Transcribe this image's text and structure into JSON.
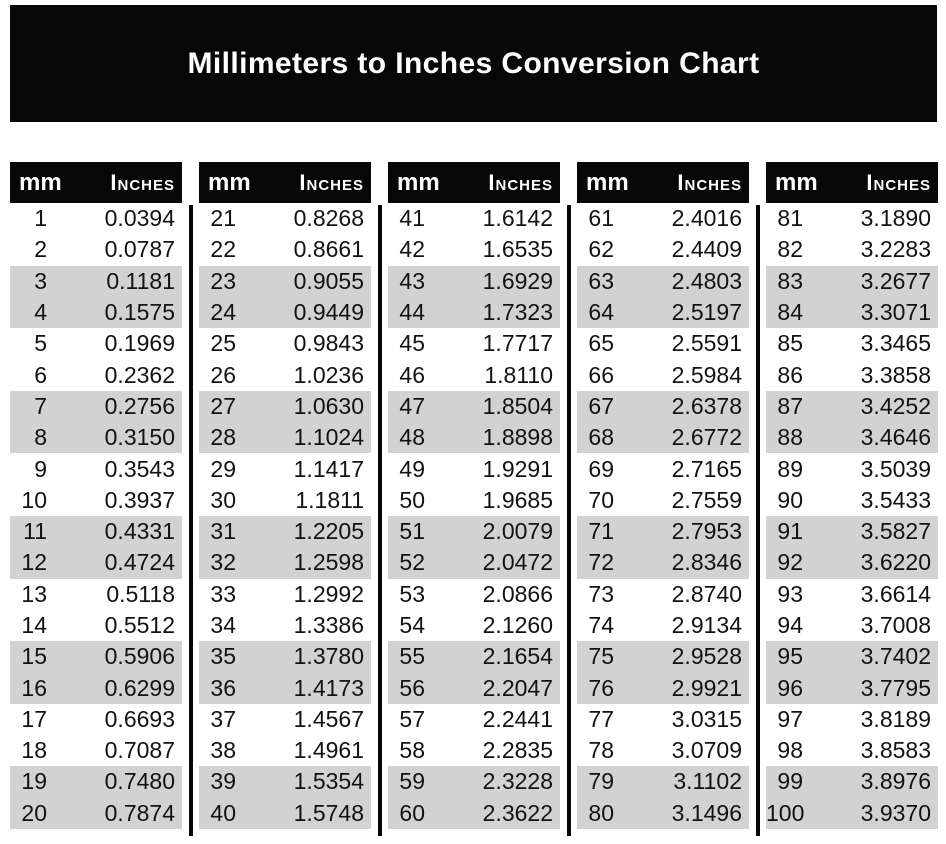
{
  "title": "Millimeters to Inches Conversion Chart",
  "columns": {
    "mm": "mm",
    "inches": "Inches"
  },
  "colors": {
    "banner_bg": "#070707",
    "header_bg": "#070707",
    "stripe": "#d2d2d2",
    "title_text": "#ffffff"
  },
  "tables": [
    {
      "rows": [
        [
          "1",
          "0.0394"
        ],
        [
          "2",
          "0.0787"
        ],
        [
          "3",
          "0.1181"
        ],
        [
          "4",
          "0.1575"
        ],
        [
          "5",
          "0.1969"
        ],
        [
          "6",
          "0.2362"
        ],
        [
          "7",
          "0.2756"
        ],
        [
          "8",
          "0.3150"
        ],
        [
          "9",
          "0.3543"
        ],
        [
          "10",
          "0.3937"
        ],
        [
          "11",
          "0.4331"
        ],
        [
          "12",
          "0.4724"
        ],
        [
          "13",
          "0.5118"
        ],
        [
          "14",
          "0.5512"
        ],
        [
          "15",
          "0.5906"
        ],
        [
          "16",
          "0.6299"
        ],
        [
          "17",
          "0.6693"
        ],
        [
          "18",
          "0.7087"
        ],
        [
          "19",
          "0.7480"
        ],
        [
          "20",
          "0.7874"
        ]
      ]
    },
    {
      "rows": [
        [
          "21",
          "0.8268"
        ],
        [
          "22",
          "0.8661"
        ],
        [
          "23",
          "0.9055"
        ],
        [
          "24",
          "0.9449"
        ],
        [
          "25",
          "0.9843"
        ],
        [
          "26",
          "1.0236"
        ],
        [
          "27",
          "1.0630"
        ],
        [
          "28",
          "1.1024"
        ],
        [
          "29",
          "1.1417"
        ],
        [
          "30",
          "1.1811"
        ],
        [
          "31",
          "1.2205"
        ],
        [
          "32",
          "1.2598"
        ],
        [
          "33",
          "1.2992"
        ],
        [
          "34",
          "1.3386"
        ],
        [
          "35",
          "1.3780"
        ],
        [
          "36",
          "1.4173"
        ],
        [
          "37",
          "1.4567"
        ],
        [
          "38",
          "1.4961"
        ],
        [
          "39",
          "1.5354"
        ],
        [
          "40",
          "1.5748"
        ]
      ]
    },
    {
      "rows": [
        [
          "41",
          "1.6142"
        ],
        [
          "42",
          "1.6535"
        ],
        [
          "43",
          "1.6929"
        ],
        [
          "44",
          "1.7323"
        ],
        [
          "45",
          "1.7717"
        ],
        [
          "46",
          "1.8110"
        ],
        [
          "47",
          "1.8504"
        ],
        [
          "48",
          "1.8898"
        ],
        [
          "49",
          "1.9291"
        ],
        [
          "50",
          "1.9685"
        ],
        [
          "51",
          "2.0079"
        ],
        [
          "52",
          "2.0472"
        ],
        [
          "53",
          "2.0866"
        ],
        [
          "54",
          "2.1260"
        ],
        [
          "55",
          "2.1654"
        ],
        [
          "56",
          "2.2047"
        ],
        [
          "57",
          "2.2441"
        ],
        [
          "58",
          "2.2835"
        ],
        [
          "59",
          "2.3228"
        ],
        [
          "60",
          "2.3622"
        ]
      ]
    },
    {
      "rows": [
        [
          "61",
          "2.4016"
        ],
        [
          "62",
          "2.4409"
        ],
        [
          "63",
          "2.4803"
        ],
        [
          "64",
          "2.5197"
        ],
        [
          "65",
          "2.5591"
        ],
        [
          "66",
          "2.5984"
        ],
        [
          "67",
          "2.6378"
        ],
        [
          "68",
          "2.6772"
        ],
        [
          "69",
          "2.7165"
        ],
        [
          "70",
          "2.7559"
        ],
        [
          "71",
          "2.7953"
        ],
        [
          "72",
          "2.8346"
        ],
        [
          "73",
          "2.8740"
        ],
        [
          "74",
          "2.9134"
        ],
        [
          "75",
          "2.9528"
        ],
        [
          "76",
          "2.9921"
        ],
        [
          "77",
          "3.0315"
        ],
        [
          "78",
          "3.0709"
        ],
        [
          "79",
          "3.1102"
        ],
        [
          "80",
          "3.1496"
        ]
      ]
    },
    {
      "rows": [
        [
          "81",
          "3.1890"
        ],
        [
          "82",
          "3.2283"
        ],
        [
          "83",
          "3.2677"
        ],
        [
          "84",
          "3.3071"
        ],
        [
          "85",
          "3.3465"
        ],
        [
          "86",
          "3.3858"
        ],
        [
          "87",
          "3.4252"
        ],
        [
          "88",
          "3.4646"
        ],
        [
          "89",
          "3.5039"
        ],
        [
          "90",
          "3.5433"
        ],
        [
          "91",
          "3.5827"
        ],
        [
          "92",
          "3.6220"
        ],
        [
          "93",
          "3.6614"
        ],
        [
          "94",
          "3.7008"
        ],
        [
          "95",
          "3.7402"
        ],
        [
          "96",
          "3.7795"
        ],
        [
          "97",
          "3.8189"
        ],
        [
          "98",
          "3.8583"
        ],
        [
          "99",
          "3.8976"
        ],
        [
          "100",
          "3.9370"
        ]
      ]
    }
  ]
}
